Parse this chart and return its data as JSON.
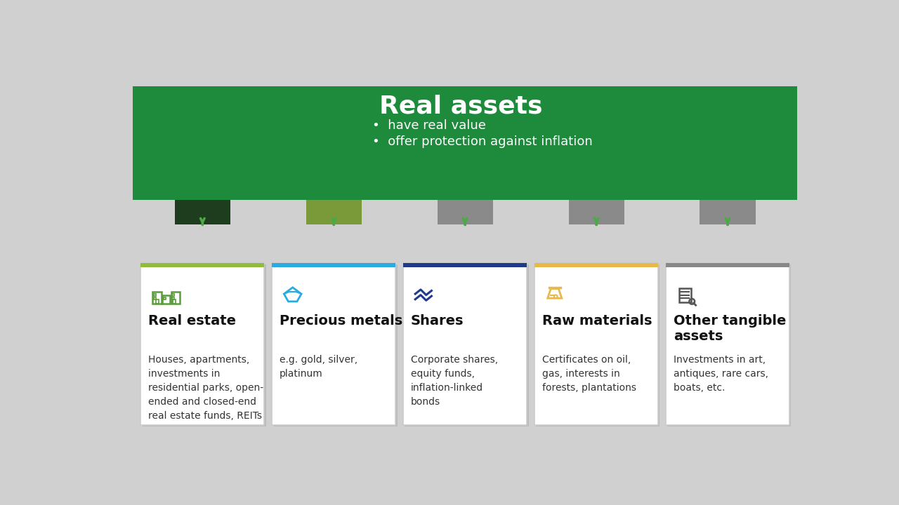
{
  "background_color": "#d0d0d0",
  "title": "Real assets",
  "title_color": "#ffffff",
  "bullet_points": [
    "have real value",
    "offer protection against inflation"
  ],
  "bullet_color": "#ffffff",
  "green_box_color": "#1e8a3c",
  "card_bg": "#ffffff",
  "connector_colors": [
    "#1e3d1e",
    "#7a9a3a",
    "#8a8a8a",
    "#8a8a8a",
    "#8a8a8a"
  ],
  "card_top_colors": [
    "#8fbc3c",
    "#29abe2",
    "#1e3a8a",
    "#e8b84b",
    "#888888"
  ],
  "cards": [
    {
      "title": "Real estate",
      "icon_color": "#5a9c3c",
      "description": "Houses, apartments,\ninvestments in\nresidential parks, open-\nended and closed-end\nreal estate funds, REITs"
    },
    {
      "title": "Precious metals",
      "icon_color": "#29abe2",
      "description": "e.g. gold, silver,\nplatinum"
    },
    {
      "title": "Shares",
      "icon_color": "#1e3a8a",
      "description": "Corporate shares,\nequity funds,\ninflation-linked\nbonds"
    },
    {
      "title": "Raw materials",
      "icon_color": "#e8b84b",
      "description": "Certificates on oil,\ngas, interests in\nforests, plantations"
    },
    {
      "title": "Other tangible\nassets",
      "icon_color": "#555555",
      "description": "Investments in art,\nantiques, rare cars,\nboats, etc."
    }
  ]
}
